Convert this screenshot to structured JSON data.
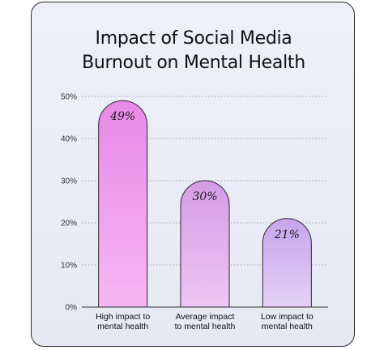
{
  "chart_data": {
    "type": "bar",
    "title_lines": [
      "Impact of Social Media",
      "Burnout on Mental Health"
    ],
    "categories": [
      [
        "High impact to",
        "mental health"
      ],
      [
        "Average impact",
        "to mental health"
      ],
      [
        "Low impact to",
        "mental health"
      ]
    ],
    "values": [
      49,
      30,
      21
    ],
    "data_labels": [
      "49%",
      "30%",
      "21%"
    ],
    "y_ticks": [
      "0%",
      "10%",
      "20%",
      "30%",
      "40%",
      "50%"
    ],
    "ylim": [
      0,
      50
    ],
    "grid": true,
    "bar_colors": [
      [
        "#f7b6f3",
        "#e889e8"
      ],
      [
        "#efc6f4",
        "#d49be6"
      ],
      [
        "#e4d1f6",
        "#c6a4ec"
      ]
    ]
  }
}
